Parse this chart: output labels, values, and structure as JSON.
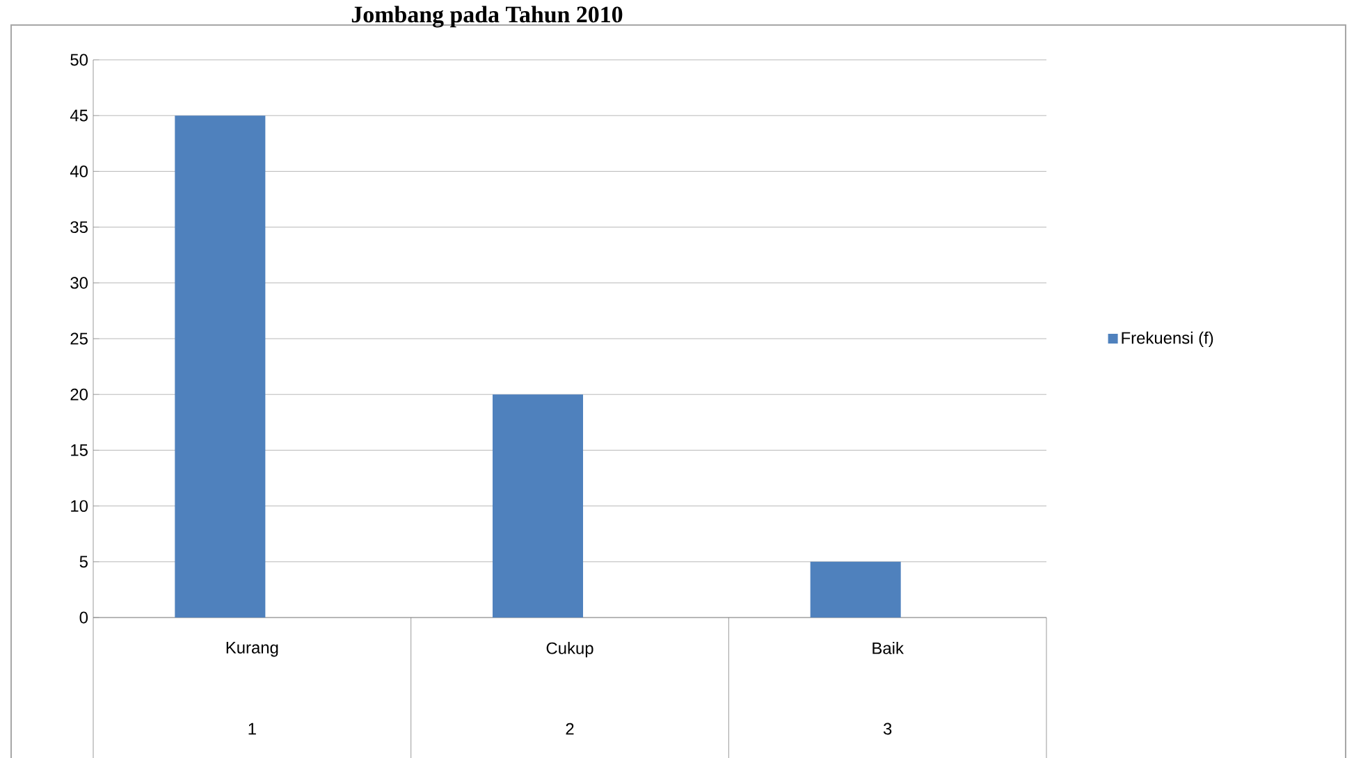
{
  "chart_data": {
    "type": "bar",
    "title": "Jombang pada Tahun 2010",
    "categories": [
      "Kurang",
      "Cukup",
      "Baik"
    ],
    "series": [
      {
        "name": "Frekuensi (f)",
        "color": "#4f81bd",
        "values": [
          45,
          20,
          5
        ]
      }
    ],
    "annotations": [
      "1",
      "2",
      "3"
    ],
    "ylim": [
      0,
      50
    ],
    "yticks": [
      0,
      5,
      10,
      15,
      20,
      25,
      30,
      35,
      40,
      45,
      50
    ],
    "grid": "y",
    "legend": "right"
  }
}
